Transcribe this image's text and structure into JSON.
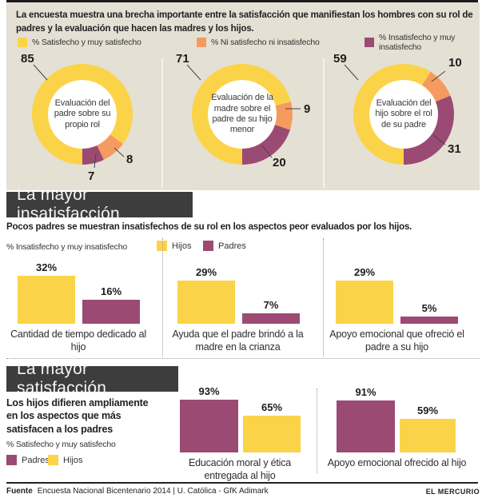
{
  "intro_text": "La encuesta muestra una brecha importante entre la satisfacción que manifiestan los hombres con su rol de padres y la evaluación que hacen las madres y los hijos.",
  "legend_top": {
    "satisfied": "% Satisfecho y muy satisfecho",
    "neutral": "% Ni satisfecho ni insatisfecho",
    "dissatisfied": "% Insatisfecho y muy insatisfecho"
  },
  "colors": {
    "satisfied_yellow": "#fbd348",
    "neutral_orange": "#f59b60",
    "dissatisfied_purple": "#9b4a73",
    "panel_beige": "#e4e0d4",
    "header_dark": "#3d3d3d"
  },
  "sections": {
    "insatisfaccion": {
      "subtitle": "Pocos padres se muestran insatisfechos de su rol en los aspectos peor evaluados por los hijos."
    },
    "satisfaccion": {
      "subtitle": "Los hijos difieren ampliamente en los aspectos que más satisfacen a los padres"
    }
  },
  "footer": {
    "source_label": "Fuente",
    "source_text": "Encuesta Nacional Bicentenario 2014 | U. Católica - GfK Adimark",
    "brand": "EL MERCURIO"
  },
  "chart_data": [
    {
      "type": "pie",
      "subtype": "donut",
      "title": "Evaluación del padre sobre su propio rol",
      "categories": [
        "% Satisfecho y muy satisfecho",
        "% Ni satisfecho ni insatisfecho",
        "% Insatisfecho y muy insatisfecho"
      ],
      "values": [
        85,
        8,
        7
      ],
      "colors": [
        "#fbd348",
        "#f59b60",
        "#9b4a73"
      ]
    },
    {
      "type": "pie",
      "subtype": "donut",
      "title": "Evaluación de la madre sobre el padre de su hijo menor",
      "categories": [
        "% Satisfecho y muy satisfecho",
        "% Ni satisfecho ni insatisfecho",
        "% Insatisfecho y muy insatisfecho"
      ],
      "values": [
        71,
        9,
        20
      ],
      "colors": [
        "#fbd348",
        "#f59b60",
        "#9b4a73"
      ]
    },
    {
      "type": "pie",
      "subtype": "donut",
      "title": "Evaluación del hijo sobre el rol de su padre",
      "categories": [
        "% Satisfecho y muy satisfecho",
        "% Ni satisfecho ni insatisfecho",
        "% Insatisfecho y muy insatisfecho"
      ],
      "values": [
        59,
        10,
        31
      ],
      "colors": [
        "#fbd348",
        "#f59b60",
        "#9b4a73"
      ]
    },
    {
      "type": "bar",
      "title": "La mayor insatisfacción",
      "measure": "% Insatisfecho y muy insatisfecho",
      "unit": "%",
      "ylim": [
        0,
        40
      ],
      "categories": [
        "Cantidad de tiempo dedicado al hijo",
        "Ayuda que el padre brindó a la madre en la crianza",
        "Apoyo emocional que ofreció el padre a su hijo"
      ],
      "series": [
        {
          "name": "Hijos",
          "color": "#fbd348",
          "values": [
            32,
            29,
            29
          ],
          "value_labels": [
            "32%",
            "29%",
            "29%"
          ]
        },
        {
          "name": "Padres",
          "color": "#9b4a73",
          "values": [
            16,
            7,
            5
          ],
          "value_labels": [
            "16%",
            "7%",
            "5%"
          ]
        }
      ]
    },
    {
      "type": "bar",
      "title": "La mayor satisfacción",
      "measure": "% Satisfecho y muy satisfecho",
      "unit": "%",
      "ylim": [
        0,
        100
      ],
      "categories": [
        "Educación moral y ética entregada al hijo",
        "Apoyo emocional ofrecido al hijo"
      ],
      "series": [
        {
          "name": "Padres",
          "color": "#9b4a73",
          "values": [
            93,
            91
          ],
          "value_labels": [
            "93%",
            "91%"
          ]
        },
        {
          "name": "Hijos",
          "color": "#fbd348",
          "values": [
            65,
            59
          ],
          "value_labels": [
            "65%",
            "59%"
          ]
        }
      ]
    }
  ]
}
